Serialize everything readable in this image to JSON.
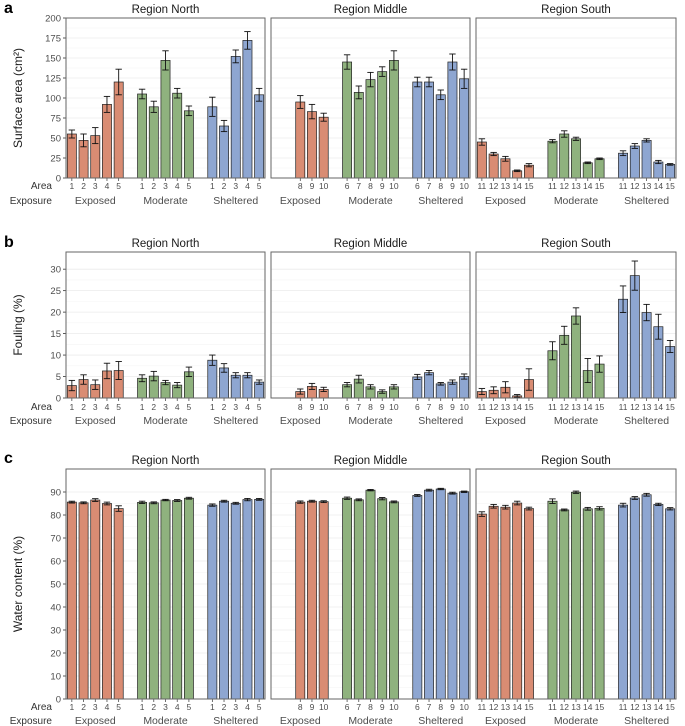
{
  "figure": {
    "row_labels": {
      "area": "Area",
      "exposure": "Exposure"
    },
    "group_labels": [
      "Exposed",
      "Moderate",
      "Sheltered"
    ],
    "colors": {
      "Exposed": "#d98c73",
      "Moderate": "#8fb27e",
      "Sheltered": "#8ea6d1",
      "grid": "#ebebeb",
      "frame": "#666666"
    }
  },
  "chart_data": [
    {
      "type": "bar",
      "panel_label": "a",
      "ylabel": "Surface area (cm²)",
      "ylim": [
        0,
        200
      ],
      "yticks": [
        0,
        25,
        50,
        75,
        100,
        125,
        150,
        175,
        200
      ],
      "xlabel": "",
      "facets": [
        {
          "title": "Region North",
          "groups": [
            {
              "name": "Exposed",
              "areas": [
                "1",
                "2",
                "3",
                "4",
                "5"
              ],
              "values": [
                55,
                47,
                53,
                92,
                120
              ],
              "errors": [
                5,
                8,
                10,
                10,
                16
              ]
            },
            {
              "name": "Moderate",
              "areas": [
                "1",
                "2",
                "3",
                "4",
                "5"
              ],
              "values": [
                105,
                89,
                147,
                106,
                84
              ],
              "errors": [
                6,
                7,
                12,
                6,
                6
              ]
            },
            {
              "name": "Sheltered",
              "areas": [
                "1",
                "2",
                "3",
                "4",
                "5"
              ],
              "values": [
                89,
                65,
                152,
                172,
                104
              ],
              "errors": [
                12,
                7,
                8,
                11,
                8
              ]
            }
          ]
        },
        {
          "title": "Region Middle",
          "groups": [
            {
              "name": "Exposed",
              "areas": [
                "8",
                "9",
                "10"
              ],
              "values": [
                95,
                83,
                76
              ],
              "errors": [
                8,
                9,
                5
              ]
            },
            {
              "name": "Moderate",
              "areas": [
                "6",
                "7",
                "8",
                "9",
                "10"
              ],
              "values": [
                145,
                107,
                123,
                133,
                147
              ],
              "errors": [
                9,
                8,
                9,
                6,
                12
              ]
            },
            {
              "name": "Sheltered",
              "areas": [
                "6",
                "7",
                "8",
                "9",
                "10"
              ],
              "values": [
                120,
                120,
                104,
                145,
                124
              ],
              "errors": [
                6,
                6,
                6,
                10,
                12
              ]
            }
          ]
        },
        {
          "title": "Region South",
          "groups": [
            {
              "name": "Exposed",
              "areas": [
                "11",
                "12",
                "13",
                "14",
                "15"
              ],
              "values": [
                45,
                30,
                24,
                9,
                16
              ],
              "errors": [
                4,
                2,
                3,
                1,
                2
              ]
            },
            {
              "name": "Moderate",
              "areas": [
                "11",
                "12",
                "13",
                "14",
                "15"
              ],
              "values": [
                46,
                55,
                49,
                19,
                24
              ],
              "errors": [
                2,
                4,
                2,
                1,
                1
              ]
            },
            {
              "name": "Sheltered",
              "areas": [
                "11",
                "12",
                "13",
                "14",
                "15"
              ],
              "values": [
                31,
                40,
                47,
                20,
                17
              ],
              "errors": [
                3,
                3,
                2,
                2,
                1
              ]
            }
          ]
        }
      ]
    },
    {
      "type": "bar",
      "panel_label": "b",
      "ylabel": "Fouling (%)",
      "ylim": [
        0,
        34
      ],
      "yticks": [
        0,
        5,
        10,
        15,
        20,
        25,
        30
      ],
      "xlabel": "",
      "facets": [
        {
          "title": "Region North",
          "groups": [
            {
              "name": "Exposed",
              "areas": [
                "1",
                "2",
                "3",
                "4",
                "5"
              ],
              "values": [
                2.9,
                4.3,
                3.1,
                6.3,
                6.4
              ],
              "errors": [
                1.2,
                1.1,
                1.1,
                1.8,
                2.1
              ]
            },
            {
              "name": "Moderate",
              "areas": [
                "1",
                "2",
                "3",
                "4",
                "5"
              ],
              "values": [
                4.6,
                5.1,
                3.6,
                3.0,
                6.1
              ],
              "errors": [
                0.8,
                1.1,
                0.5,
                0.6,
                1.1
              ]
            },
            {
              "name": "Sheltered",
              "areas": [
                "1",
                "2",
                "3",
                "4",
                "5"
              ],
              "values": [
                8.8,
                7.0,
                5.3,
                5.3,
                3.7
              ],
              "errors": [
                1.2,
                1.0,
                0.6,
                0.6,
                0.5
              ]
            }
          ]
        },
        {
          "title": "Region Middle",
          "groups": [
            {
              "name": "Exposed",
              "areas": [
                "8",
                "9",
                "10"
              ],
              "values": [
                1.5,
                2.7,
                2.0
              ],
              "errors": [
                0.6,
                0.7,
                0.5
              ]
            },
            {
              "name": "Moderate",
              "areas": [
                "6",
                "7",
                "8",
                "9",
                "10"
              ],
              "values": [
                3.1,
                4.4,
                2.6,
                1.5,
                2.6
              ],
              "errors": [
                0.5,
                0.9,
                0.5,
                0.4,
                0.5
              ]
            },
            {
              "name": "Sheltered",
              "areas": [
                "6",
                "7",
                "8",
                "9",
                "10"
              ],
              "values": [
                4.9,
                5.9,
                3.3,
                3.7,
                5.0
              ],
              "errors": [
                0.6,
                0.5,
                0.3,
                0.5,
                0.6
              ]
            }
          ]
        },
        {
          "title": "Region South",
          "groups": [
            {
              "name": "Exposed",
              "areas": [
                "11",
                "12",
                "13",
                "14",
                "15"
              ],
              "values": [
                1.5,
                1.8,
                2.5,
                0.5,
                4.3
              ],
              "errors": [
                0.7,
                0.8,
                1.3,
                0.3,
                2.5
              ]
            },
            {
              "name": "Moderate",
              "areas": [
                "11",
                "12",
                "13",
                "14",
                "15"
              ],
              "values": [
                11.0,
                14.6,
                19.1,
                6.4,
                7.9
              ],
              "errors": [
                2.1,
                2.1,
                1.9,
                2.8,
                1.9
              ]
            },
            {
              "name": "Sheltered",
              "areas": [
                "11",
                "12",
                "13",
                "14",
                "15"
              ],
              "values": [
                23.0,
                28.5,
                19.9,
                16.6,
                12.0
              ],
              "errors": [
                3.1,
                3.4,
                1.9,
                2.9,
                1.4
              ]
            }
          ]
        }
      ]
    },
    {
      "type": "bar",
      "panel_label": "c",
      "ylabel": "Water content (%)",
      "ylim": [
        0,
        100
      ],
      "yticks": [
        0,
        10,
        20,
        30,
        40,
        50,
        60,
        70,
        80,
        90
      ],
      "xlabel": "",
      "facets": [
        {
          "title": "Region North",
          "groups": [
            {
              "name": "Exposed",
              "areas": [
                "1",
                "2",
                "3",
                "4",
                "5"
              ],
              "values": [
                85.6,
                85.3,
                86.5,
                85.0,
                82.8
              ],
              "errors": [
                0.4,
                0.4,
                0.6,
                0.6,
                1.2
              ]
            },
            {
              "name": "Moderate",
              "areas": [
                "1",
                "2",
                "3",
                "4",
                "5"
              ],
              "values": [
                85.5,
                85.3,
                86.5,
                86.3,
                87.3
              ],
              "errors": [
                0.5,
                0.4,
                0.3,
                0.4,
                0.4
              ]
            },
            {
              "name": "Sheltered",
              "areas": [
                "1",
                "2",
                "3",
                "4",
                "5"
              ],
              "values": [
                84.3,
                86.0,
                85.1,
                86.7,
                86.8
              ],
              "errors": [
                0.5,
                0.4,
                0.4,
                0.5,
                0.4
              ]
            }
          ]
        },
        {
          "title": "Region Middle",
          "groups": [
            {
              "name": "Exposed",
              "areas": [
                "8",
                "9",
                "10"
              ],
              "values": [
                85.6,
                86.0,
                85.8
              ],
              "errors": [
                0.5,
                0.4,
                0.4
              ]
            },
            {
              "name": "Moderate",
              "areas": [
                "6",
                "7",
                "8",
                "9",
                "10"
              ],
              "values": [
                87.3,
                86.6,
                90.8,
                87.1,
                85.7
              ],
              "errors": [
                0.5,
                0.4,
                0.3,
                0.5,
                0.4
              ]
            },
            {
              "name": "Sheltered",
              "areas": [
                "6",
                "7",
                "8",
                "9",
                "10"
              ],
              "values": [
                88.5,
                90.8,
                91.3,
                89.5,
                90.1
              ],
              "errors": [
                0.4,
                0.4,
                0.3,
                0.4,
                0.3
              ]
            }
          ]
        },
        {
          "title": "Region South",
          "groups": [
            {
              "name": "Exposed",
              "areas": [
                "11",
                "12",
                "13",
                "14",
                "15"
              ],
              "values": [
                80.4,
                83.8,
                83.4,
                85.2,
                82.8
              ],
              "errors": [
                1.0,
                0.8,
                0.8,
                0.8,
                0.6
              ]
            },
            {
              "name": "Moderate",
              "areas": [
                "11",
                "12",
                "13",
                "14",
                "15"
              ],
              "values": [
                86.0,
                82.2,
                89.9,
                82.7,
                82.9
              ],
              "errors": [
                1.0,
                0.4,
                0.5,
                0.6,
                0.7
              ]
            },
            {
              "name": "Sheltered",
              "areas": [
                "11",
                "12",
                "13",
                "14",
                "15"
              ],
              "values": [
                84.3,
                87.4,
                88.8,
                84.6,
                82.7
              ],
              "errors": [
                0.8,
                0.6,
                0.6,
                0.5,
                0.5
              ]
            }
          ]
        }
      ]
    }
  ]
}
